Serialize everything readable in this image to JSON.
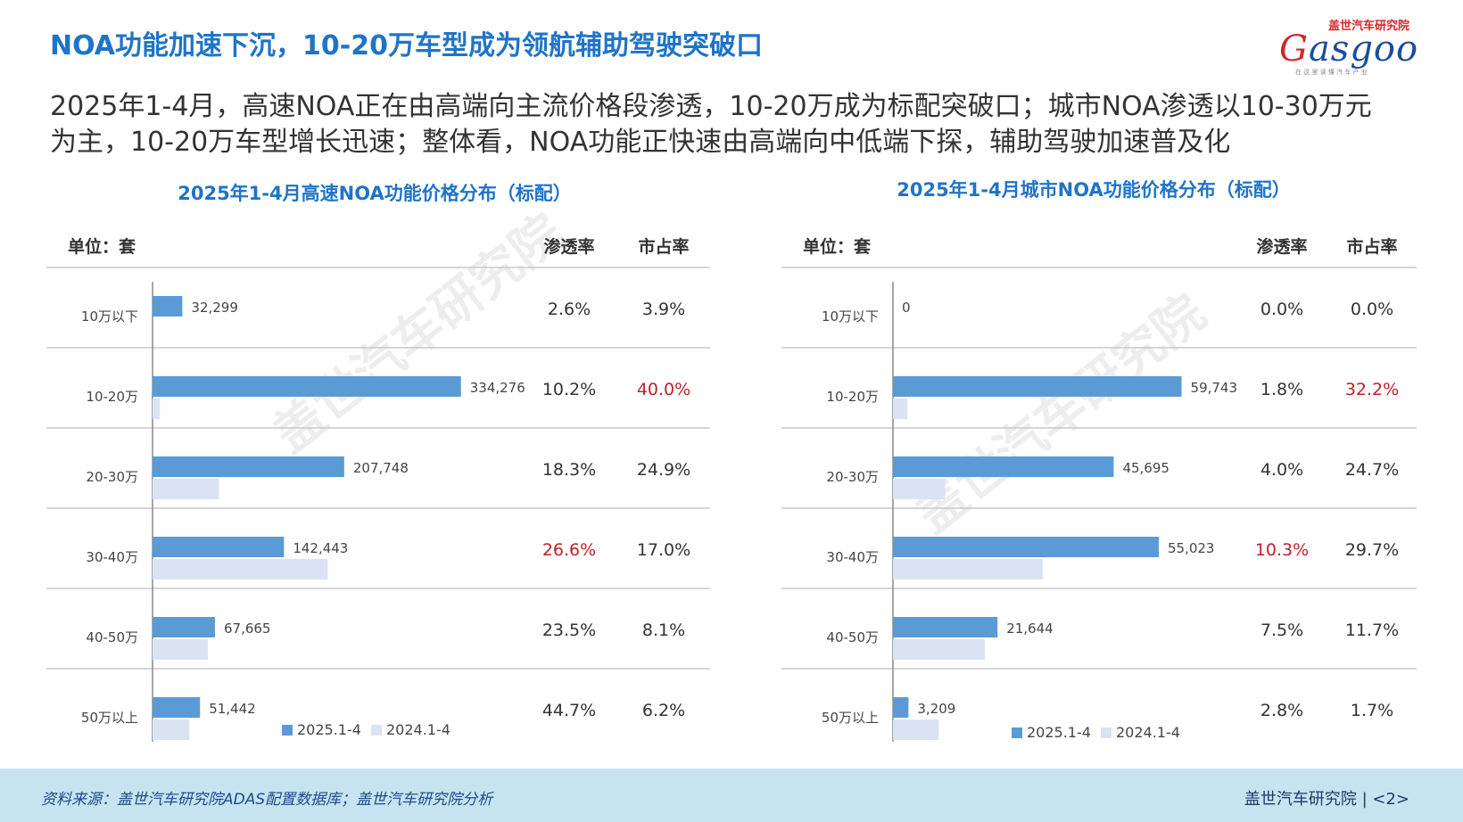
{
  "page": {
    "title": "NOA功能加速下沉，10-20万车型成为领航辅助驾驶突破口",
    "subtitle_line1": "2025年1-4月，高速NOA正在由高端向主流价格段渗透，10-20万成为标配突破口；城市NOA渗透以10-30万元",
    "subtitle_line2": "为主，10-20万车型增长迅速；整体看，NOA功能正快速由高端向中低端下探，辅助驾驶加速普及化",
    "logo_cn": "盖世汽车研究院",
    "logo_en": "asgoo",
    "logo_en_first": "G",
    "logo_sub": "在 这 里 读 懂 汽 车 产 业",
    "watermark_cn": "盖世汽车研究院",
    "footer_source": "资料来源：盖世汽车研究院ADAS配置数据库；盖世汽车研究院分析",
    "footer_org": "盖世汽车研究院 | <2>"
  },
  "colors": {
    "title": "#1f74c8",
    "bar_2025": "#5b9bd5",
    "bar_2024": "#dae3f3",
    "highlight": "#c0202a",
    "footer_bg": "#c5e4f0"
  },
  "chart_data": [
    {
      "type": "bar",
      "orientation": "horizontal",
      "title": "2025年1-4月高速NOA功能价格分布（标配）",
      "unit_label": "单位：套",
      "col_pen_label": "渗透率",
      "col_share_label": "市占率",
      "categories": [
        "10万以下",
        "10-20万",
        "20-30万",
        "30-40万",
        "40-50万",
        "50万以上"
      ],
      "series": [
        {
          "name": "2025.1-4",
          "values": [
            32299,
            334276,
            207748,
            142443,
            67665,
            51442
          ]
        },
        {
          "name": "2024.1-4",
          "values": [
            0,
            8000,
            72000,
            190000,
            60000,
            40000
          ]
        }
      ],
      "value_labels": [
        "32,299",
        "334,276",
        "207,748",
        "142,443",
        "67,665",
        "51,442"
      ],
      "xlim": [
        0,
        350000
      ],
      "penetration": [
        "2.6%",
        "10.2%",
        "18.3%",
        "26.6%",
        "23.5%",
        "44.7%"
      ],
      "share": [
        "3.9%",
        "40.0%",
        "24.9%",
        "17.0%",
        "8.1%",
        "6.2%"
      ],
      "highlight_penetration": [
        3
      ],
      "highlight_share": [
        1
      ],
      "legend": "bottom"
    },
    {
      "type": "bar",
      "orientation": "horizontal",
      "title": "2025年1-4月城市NOA功能价格分布（标配）",
      "unit_label": "单位：套",
      "col_pen_label": "渗透率",
      "col_share_label": "市占率",
      "categories": [
        "10万以下",
        "10-20万",
        "20-30万",
        "30-40万",
        "40-50万",
        "50万以上"
      ],
      "series": [
        {
          "name": "2025.1-4",
          "values": [
            0,
            59743,
            45695,
            55023,
            21644,
            3209
          ]
        },
        {
          "name": "2024.1-4",
          "values": [
            0,
            3000,
            10800,
            31000,
            19000,
            9500
          ]
        }
      ],
      "value_labels": [
        "0",
        "59,743",
        "45,695",
        "55,023",
        "21,644",
        "3,209"
      ],
      "xlim": [
        0,
        65000
      ],
      "penetration": [
        "0.0%",
        "1.8%",
        "4.0%",
        "10.3%",
        "7.5%",
        "2.8%"
      ],
      "share": [
        "0.0%",
        "32.2%",
        "24.7%",
        "29.7%",
        "11.7%",
        "1.7%"
      ],
      "highlight_penetration": [
        3
      ],
      "highlight_share": [
        1
      ],
      "legend": "bottom"
    }
  ]
}
